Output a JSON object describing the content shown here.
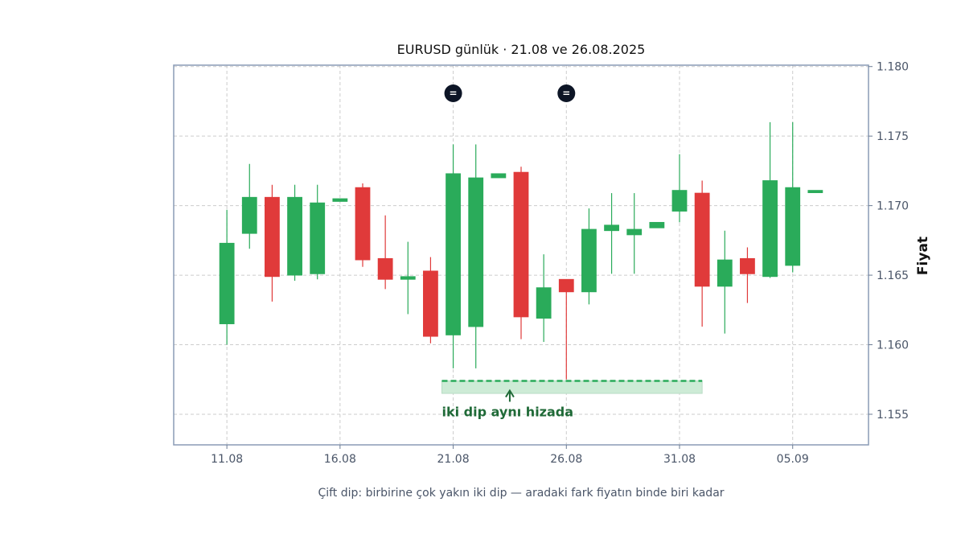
{
  "chart_data": {
    "type": "candlestick",
    "title": "EURUSD günlük · 21.08 ve 26.08.2025",
    "subtitle": "Çift dip: birbirine çok yakın iki dip — aradaki fark fiyatın binde biri kadar",
    "ylabel": "Fiyat",
    "xlabel": "",
    "ylim": [
      1.1528,
      1.1801
    ],
    "xlim": [
      8.65,
      39.35
    ],
    "grid": true,
    "y_ticks": [
      {
        "value": 1.155,
        "label": "1.155"
      },
      {
        "value": 1.16,
        "label": "1.160"
      },
      {
        "value": 1.165,
        "label": "1.165"
      },
      {
        "value": 1.17,
        "label": "1.170"
      },
      {
        "value": 1.175,
        "label": "1.175"
      },
      {
        "value": 1.18,
        "label": "1.180"
      }
    ],
    "x_ticks": [
      {
        "day": 11,
        "label": "11.08"
      },
      {
        "day": 16,
        "label": "16.08"
      },
      {
        "day": 21,
        "label": "21.08"
      },
      {
        "day": 26,
        "label": "26.08"
      },
      {
        "day": 31,
        "label": "31.08"
      },
      {
        "day": 36,
        "label": "05.09"
      }
    ],
    "candles": [
      {
        "day": 11,
        "open": 1.1615,
        "high": 1.1697,
        "low": 1.16,
        "close": 1.1673
      },
      {
        "day": 12,
        "open": 1.168,
        "high": 1.173,
        "low": 1.1669,
        "close": 1.1706
      },
      {
        "day": 13,
        "open": 1.1706,
        "high": 1.1715,
        "low": 1.1631,
        "close": 1.1649
      },
      {
        "day": 14,
        "open": 1.165,
        "high": 1.1715,
        "low": 1.1646,
        "close": 1.1706
      },
      {
        "day": 15,
        "open": 1.1651,
        "high": 1.1715,
        "low": 1.1647,
        "close": 1.1702
      },
      {
        "day": 16,
        "open": 1.1703,
        "high": 1.1705,
        "low": 1.1703,
        "close": 1.1705
      },
      {
        "day": 17,
        "open": 1.1713,
        "high": 1.1716,
        "low": 1.1656,
        "close": 1.1661
      },
      {
        "day": 18,
        "open": 1.1662,
        "high": 1.1693,
        "low": 1.164,
        "close": 1.1647
      },
      {
        "day": 19,
        "open": 1.1647,
        "high": 1.1674,
        "low": 1.1622,
        "close": 1.1649
      },
      {
        "day": 20,
        "open": 1.1653,
        "high": 1.1663,
        "low": 1.1601,
        "close": 1.1606
      },
      {
        "day": 21,
        "open": 1.1607,
        "high": 1.1744,
        "low": 1.1583,
        "close": 1.1723
      },
      {
        "day": 22,
        "open": 1.1613,
        "high": 1.1744,
        "low": 1.1583,
        "close": 1.172
      },
      {
        "day": 23,
        "open": 1.172,
        "high": 1.1723,
        "low": 1.172,
        "close": 1.1723
      },
      {
        "day": 24,
        "open": 1.1724,
        "high": 1.1728,
        "low": 1.1604,
        "close": 1.162
      },
      {
        "day": 25,
        "open": 1.1619,
        "high": 1.1665,
        "low": 1.1602,
        "close": 1.1641
      },
      {
        "day": 26,
        "open": 1.1647,
        "high": 1.1647,
        "low": 1.1575,
        "close": 1.1638
      },
      {
        "day": 27,
        "open": 1.1638,
        "high": 1.1698,
        "low": 1.1629,
        "close": 1.1683
      },
      {
        "day": 28,
        "open": 1.1682,
        "high": 1.1709,
        "low": 1.1651,
        "close": 1.1686
      },
      {
        "day": 29,
        "open": 1.1679,
        "high": 1.1709,
        "low": 1.1651,
        "close": 1.1683
      },
      {
        "day": 30,
        "open": 1.1684,
        "high": 1.1688,
        "low": 1.1684,
        "close": 1.1688
      },
      {
        "day": 31,
        "open": 1.1696,
        "high": 1.1737,
        "low": 1.1688,
        "close": 1.1711
      },
      {
        "day": 32,
        "open": 1.1709,
        "high": 1.1718,
        "low": 1.1613,
        "close": 1.1642
      },
      {
        "day": 33,
        "open": 1.1642,
        "high": 1.1682,
        "low": 1.1608,
        "close": 1.1661
      },
      {
        "day": 34,
        "open": 1.1662,
        "high": 1.167,
        "low": 1.163,
        "close": 1.1651
      },
      {
        "day": 35,
        "open": 1.1649,
        "high": 1.176,
        "low": 1.1648,
        "close": 1.1718
      },
      {
        "day": 36,
        "open": 1.1657,
        "high": 1.176,
        "low": 1.1652,
        "close": 1.1713
      },
      {
        "day": 37,
        "open": 1.1711,
        "high": 1.1711,
        "low": 1.1711,
        "close": 1.1711
      }
    ],
    "event_markers": [
      {
        "day": 21,
        "label": "="
      },
      {
        "day": 26,
        "label": "="
      }
    ],
    "support_zone": {
      "day_start": 20.5,
      "day_end": 32.0,
      "price_low": 1.1565,
      "price_high": 1.1574,
      "line_price": 1.1574,
      "arrow_day": 23.5,
      "arrow_from_price": 1.1559,
      "arrow_to_price": 1.1567
    },
    "annotation": {
      "text": "iki dip aynı hizada",
      "day": 20.5,
      "price": 1.1552
    },
    "colors": {
      "up": "#2aab5a",
      "down": "#e03a3a",
      "zone_fill": "#cdebd6",
      "zone_line": "#2aab5a",
      "annotation": "#1f6a37",
      "marker": "#0d1526",
      "frame": "#8a9bb5",
      "grid": "#cccccc"
    }
  }
}
